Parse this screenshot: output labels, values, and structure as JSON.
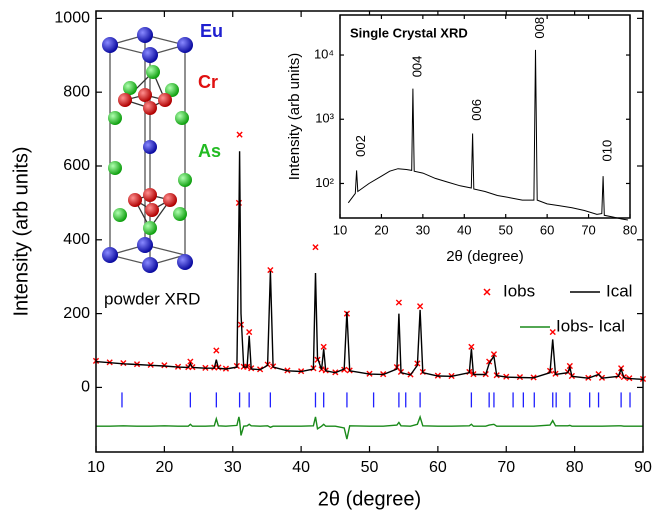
{
  "chart_data": [
    {
      "type": "line",
      "xlabel": "2θ (degree)",
      "ylabel": "Intensity (arb units)",
      "xlim": [
        10,
        90
      ],
      "ylim": [
        -175,
        1020
      ],
      "xticks": [
        10,
        20,
        30,
        40,
        50,
        60,
        70,
        80,
        90
      ],
      "yticks": [
        0,
        200,
        400,
        600,
        800,
        1000
      ],
      "legend": "right",
      "annotation": "powder XRD",
      "structure_labels": [
        {
          "text": "Eu",
          "color": "#1f1fd0"
        },
        {
          "text": "Cr",
          "color": "#e01010"
        },
        {
          "text": "As",
          "color": "#22bb22"
        }
      ],
      "x": [
        10,
        12,
        14,
        16,
        18,
        20,
        22,
        23.5,
        23.8,
        24.1,
        26,
        27.3,
        27.6,
        27.9,
        29,
        30.6,
        30.9,
        31.0,
        31.2,
        31.6,
        32.1,
        32.4,
        32.7,
        34,
        35.1,
        35.5,
        35.9,
        38,
        40,
        41.8,
        42.1,
        42.4,
        43.0,
        43.3,
        43.6,
        45,
        46.3,
        46.7,
        47.1,
        50,
        52,
        54.0,
        54.3,
        54.6,
        56,
        57.0,
        57.4,
        57.8,
        60,
        62,
        64.6,
        64.9,
        65.2,
        67.0,
        67.5,
        68.2,
        68.6,
        70,
        72,
        74,
        76.4,
        76.8,
        77.2,
        79.0,
        79.3,
        79.6,
        82,
        83.5,
        84,
        86.4,
        86.8,
        87.2,
        88,
        90
      ],
      "series": [
        {
          "name": "Iobs",
          "color": "#ff0000",
          "marker": "x",
          "values": [
            72,
            68,
            66,
            63,
            61,
            60,
            56,
            55,
            70,
            55,
            53,
            54,
            100,
            54,
            51,
            58,
            500,
            685,
            170,
            56,
            56,
            150,
            52,
            49,
            62,
            318,
            57,
            46,
            44,
            52,
            380,
            75,
            49,
            110,
            46,
            41,
            48,
            200,
            46,
            37,
            36,
            55,
            230,
            42,
            35,
            65,
            220,
            42,
            32,
            31,
            42,
            110,
            36,
            36,
            70,
            90,
            33,
            29,
            28,
            27,
            45,
            150,
            37,
            42,
            58,
            31,
            26,
            36,
            26,
            32,
            52,
            28,
            25,
            23
          ]
        },
        {
          "name": "Ical",
          "color": "#000000",
          "values": [
            70,
            67,
            64,
            62,
            60,
            58,
            55,
            54,
            65,
            54,
            52,
            52,
            75,
            52,
            50,
            55,
            450,
            640,
            200,
            55,
            55,
            140,
            50,
            48,
            60,
            315,
            55,
            45,
            43,
            50,
            310,
            80,
            48,
            105,
            45,
            40,
            50,
            205,
            45,
            36,
            35,
            50,
            200,
            40,
            34,
            60,
            210,
            40,
            31,
            30,
            40,
            105,
            35,
            35,
            65,
            85,
            32,
            28,
            27,
            26,
            40,
            130,
            35,
            40,
            55,
            30,
            25,
            35,
            25,
            30,
            50,
            27,
            24,
            22
          ]
        },
        {
          "name": "Iobs- Ical",
          "color": "#1a8a1a",
          "values": [
            -105,
            -105,
            -104,
            -105,
            -105,
            -104,
            -105,
            -105,
            -100,
            -105,
            -105,
            -104,
            -85,
            -104,
            -105,
            -103,
            -80,
            -90,
            -130,
            -105,
            -104,
            -100,
            -104,
            -105,
            -104,
            -108,
            -105,
            -105,
            -105,
            -104,
            -80,
            -112,
            -105,
            -100,
            -105,
            -105,
            -110,
            -140,
            -104,
            -105,
            -105,
            -102,
            -95,
            -104,
            -105,
            -100,
            -80,
            -104,
            -105,
            -105,
            -104,
            -100,
            -105,
            -105,
            -102,
            -100,
            -105,
            -105,
            -105,
            -105,
            -102,
            -90,
            -104,
            -104,
            -103,
            -105,
            -105,
            -105,
            -105,
            -104,
            -104,
            -105,
            -105,
            -105
          ]
        }
      ],
      "reflections": {
        "color": "#2020ff",
        "x": [
          13.8,
          23.8,
          27.6,
          31.0,
          32.4,
          35.5,
          42.1,
          43.3,
          46.7,
          50.6,
          54.3,
          55.3,
          57.4,
          64.9,
          67.5,
          68.2,
          71.0,
          72.5,
          74.1,
          76.8,
          77.3,
          79.3,
          82.2,
          83.5,
          86.8,
          88.1
        ]
      }
    },
    {
      "type": "line",
      "title": "Single Crystal XRD",
      "xlabel": "2θ (degree)",
      "ylabel": "Intensity (arb units)",
      "log_y": true,
      "xlim": [
        10,
        80
      ],
      "ylim": [
        29,
        42000
      ],
      "xticks": [
        10,
        20,
        30,
        40,
        50,
        60,
        70,
        80
      ],
      "yticks": [
        {
          "value": 100,
          "label": "10²"
        },
        {
          "value": 1000,
          "label": "10³"
        },
        {
          "value": 10000,
          "label": "10⁴"
        }
      ],
      "x": [
        12,
        13.7,
        14,
        14.3,
        17,
        20,
        22,
        24,
        26,
        27.3,
        27.6,
        27.9,
        30,
        33,
        36,
        39,
        41.7,
        42,
        42.3,
        45,
        48,
        51,
        54,
        56.8,
        57.2,
        57.6,
        60,
        63,
        66,
        69,
        72,
        73.2,
        73.5,
        73.8,
        76,
        78,
        79.5
      ],
      "series": [
        {
          "color": "#000000",
          "values": [
            50,
            70,
            160,
            75,
            100,
            130,
            155,
            170,
            165,
            160,
            3000,
            155,
            145,
            120,
            105,
            92,
            85,
            600,
            82,
            75,
            65,
            60,
            55,
            55,
            12000,
            55,
            48,
            45,
            42,
            38,
            33,
            34,
            130,
            32,
            30,
            28,
            27
          ]
        }
      ],
      "annotations": [
        {
          "text": "002",
          "x": 14.0,
          "y": 260
        },
        {
          "text": "004",
          "x": 27.6,
          "y": 4500
        },
        {
          "text": "006",
          "x": 42.0,
          "y": 950
        },
        {
          "text": "008",
          "x": 57.2,
          "y": 18000
        },
        {
          "text": "010",
          "x": 73.5,
          "y": 220
        }
      ]
    }
  ]
}
